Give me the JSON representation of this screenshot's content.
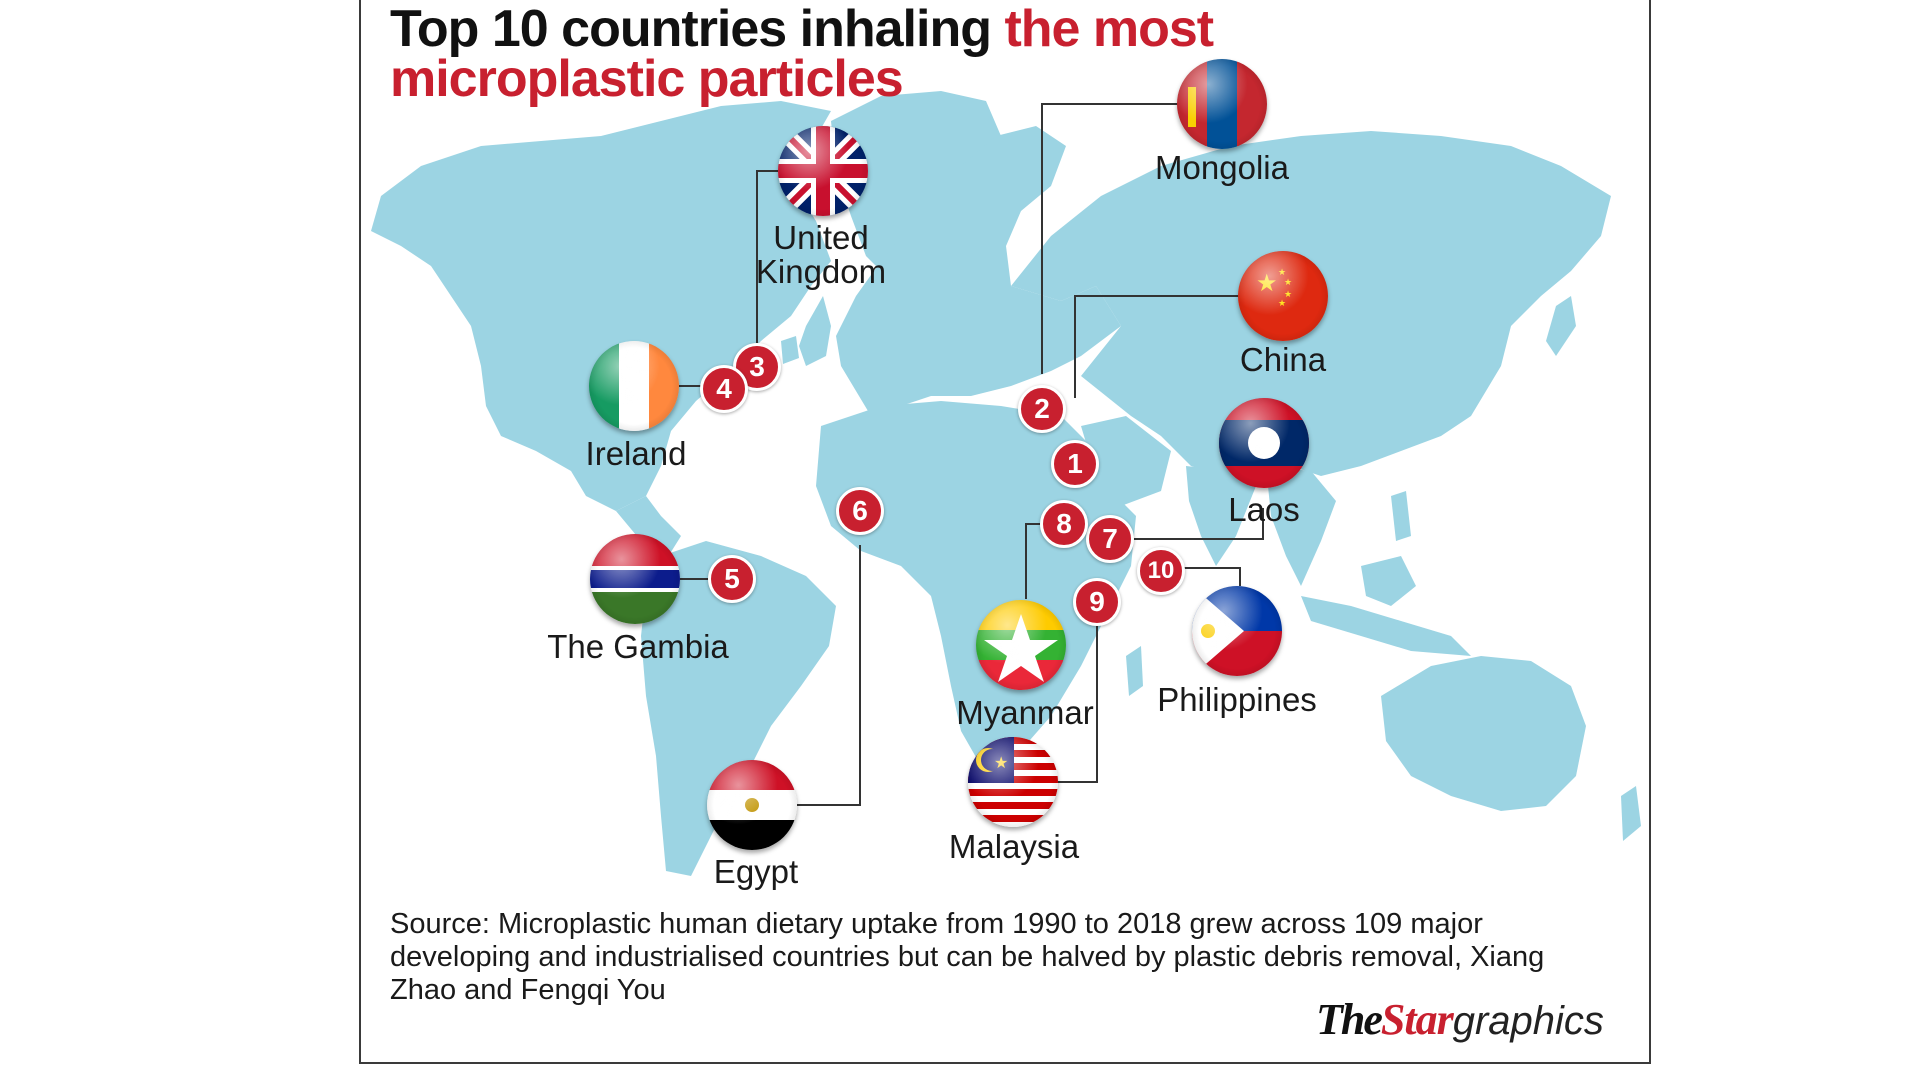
{
  "title": {
    "part1": "Top 10 countries inhaling ",
    "part2": "the most",
    "part3": "microplastic particles"
  },
  "colors": {
    "accent_red": "#c8202f",
    "land": "#9cd4e3",
    "text": "#1a1a1a"
  },
  "countries": [
    {
      "rank": "1",
      "name": "China",
      "flag_icon": "china-flag-icon"
    },
    {
      "rank": "2",
      "name": "Mongolia",
      "flag_icon": "mongolia-flag-icon"
    },
    {
      "rank": "3",
      "name_line1": "United",
      "name_line2": "Kingdom",
      "flag_icon": "uk-flag-icon"
    },
    {
      "rank": "4",
      "name": "Ireland",
      "flag_icon": "ireland-flag-icon"
    },
    {
      "rank": "5",
      "name": "The Gambia",
      "flag_icon": "gambia-flag-icon"
    },
    {
      "rank": "6",
      "name": "Egypt",
      "flag_icon": "egypt-flag-icon"
    },
    {
      "rank": "7",
      "name": "Laos",
      "flag_icon": "laos-flag-icon"
    },
    {
      "rank": "8",
      "name": "Myanmar",
      "flag_icon": "myanmar-flag-icon"
    },
    {
      "rank": "9",
      "name": "Malaysia",
      "flag_icon": "malaysia-flag-icon"
    },
    {
      "rank": "10",
      "name": "Philippines",
      "flag_icon": "philippines-flag-icon"
    }
  ],
  "source": "Source: Microplastic human dietary uptake from 1990 to 2018 grew across 109 major developing and industrialised countries but can be halved by plastic debris removal, Xiang Zhao and Fengqi You",
  "logo": {
    "the": "The",
    "star": "Star",
    "graphics": "graphics"
  }
}
